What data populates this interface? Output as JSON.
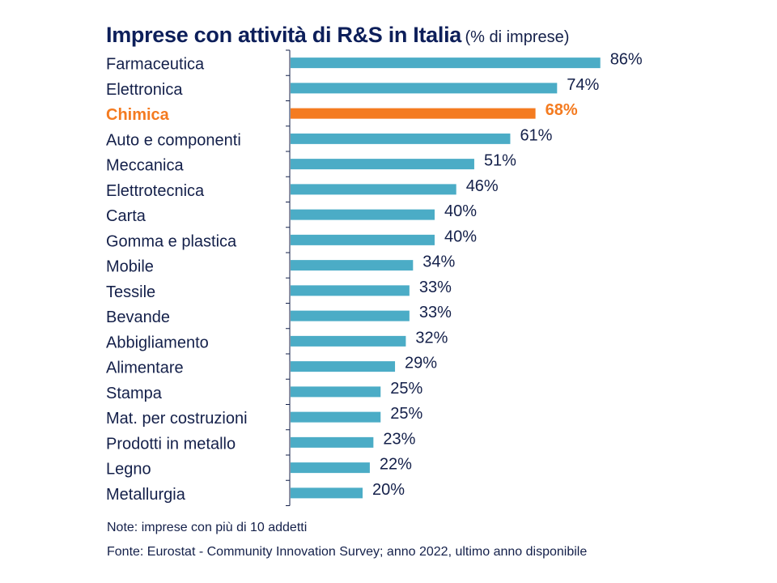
{
  "chart_data": {
    "type": "bar",
    "orientation": "horizontal",
    "title": "Imprese con attività di R&S in Italia",
    "subtitle": "(% di imprese)",
    "categories": [
      "Farmaceutica",
      "Elettronica",
      "Chimica",
      "Auto e componenti",
      "Meccanica",
      "Elettrotecnica",
      "Carta",
      "Gomma e plastica",
      "Mobile",
      "Tessile",
      "Bevande",
      "Abbigliamento",
      "Alimentare",
      "Stampa",
      "Mat. per costruzioni",
      "Prodotti in metallo",
      "Legno",
      "Metallurgia"
    ],
    "values": [
      86,
      74,
      68,
      61,
      51,
      46,
      40,
      40,
      34,
      33,
      33,
      32,
      29,
      25,
      25,
      23,
      22,
      20
    ],
    "unit": "%",
    "highlight": "Chimica",
    "xlim": [
      0,
      100
    ],
    "grid": false,
    "colors": {
      "bar": "#4bacc6",
      "highlight": "#f47b20",
      "text": "#14204a"
    }
  },
  "note": "Note: imprese con più di 10 addetti",
  "source": "Fonte: Eurostat - Community Innovation Survey; anno 2022, ultimo anno disponibile"
}
